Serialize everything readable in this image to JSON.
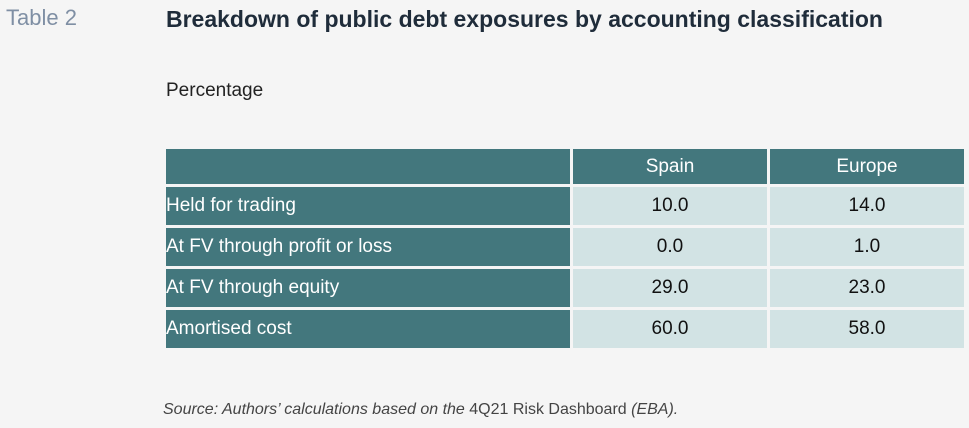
{
  "table_label": "Table 2",
  "title": "Breakdown of public debt exposures by accounting classification",
  "subtitle": "Percentage",
  "columns": [
    "Spain",
    "Europe"
  ],
  "rows": [
    {
      "label": "Held for trading",
      "values": [
        "10.0",
        "14.0"
      ]
    },
    {
      "label": "At FV through profit or loss",
      "values": [
        "0.0",
        "1.0"
      ]
    },
    {
      "label": "At FV through equity",
      "values": [
        "29.0",
        "23.0"
      ]
    },
    {
      "label": "Amortised cost",
      "values": [
        "60.0",
        "58.0"
      ]
    }
  ],
  "source": {
    "part1": "Source: Authors’ calculations based on the ",
    "part2": "4Q21 Risk Dashboard",
    "part3": " (EBA)."
  },
  "colors": {
    "header_fill": "#43777d",
    "cell_fill": "#d2e3e4",
    "title": "#1f2c3a",
    "table_label": "#7f8fa4"
  }
}
